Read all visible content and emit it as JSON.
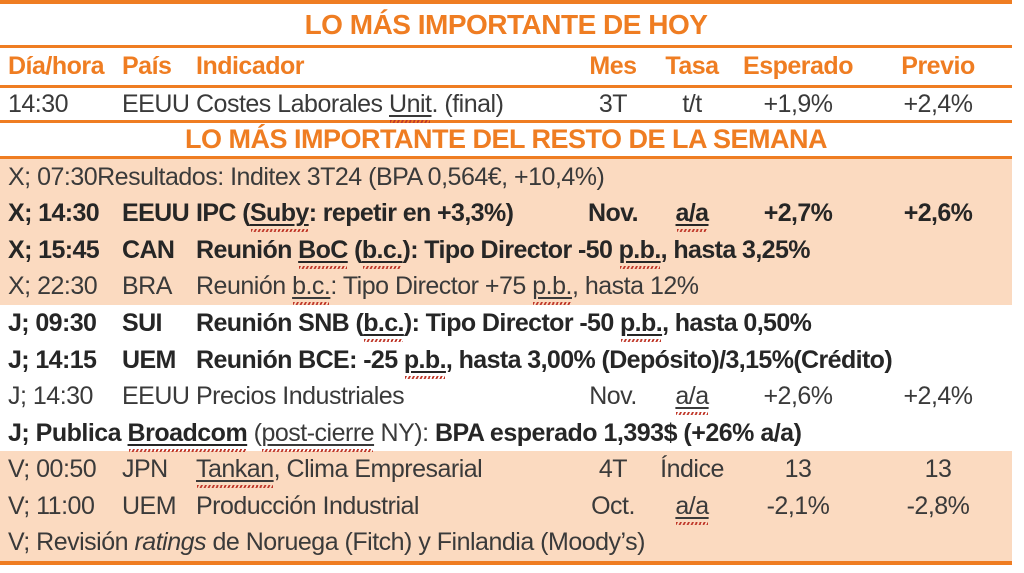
{
  "colors": {
    "accent_orange": "#EF7D22",
    "row_highlight_peach": "#FBDAC0",
    "spellcheck_red": "#C0392B",
    "text_dark": "#3A3A3A"
  },
  "today": {
    "title": "LO MÁS IMPORTANTE DE HOY",
    "headers": {
      "day": "Día/hora",
      "country": "País",
      "indicator": "Indicador",
      "mes": "Mes",
      "tasa": "Tasa",
      "esperado": "Esperado",
      "previo": "Previo"
    },
    "rows": [
      {
        "kind": "cols",
        "bold": false,
        "bg": "white",
        "day": "14:30",
        "country": "EEUU",
        "indicator": [
          {
            "t": "Costes Laborales "
          },
          {
            "t": "Unit",
            "usq": true
          },
          {
            "t": ". (final)"
          }
        ],
        "mes": "3T",
        "tasa": [
          {
            "t": "t/t"
          }
        ],
        "esperado": "+1,9%",
        "previo": "+2,4%"
      }
    ]
  },
  "week": {
    "title": "LO MÁS IMPORTANTE DEL RESTO DE LA SEMANA",
    "rows": [
      {
        "kind": "free",
        "bold": false,
        "bg": "peach",
        "segments": [
          {
            "t": "X; 07:30Resultados: Inditex 3T24 (BPA 0,564€, +10,4%)"
          }
        ]
      },
      {
        "kind": "cols",
        "bold": true,
        "bg": "peach",
        "day": "X; 14:30",
        "country": "EEUU",
        "indicator": [
          {
            "t": "IPC ("
          },
          {
            "t": "Suby",
            "usq": true
          },
          {
            "t": ": repetir en +3,3%)"
          }
        ],
        "mes": "Nov.",
        "tasa": [
          {
            "t": "a/a",
            "usq": true
          }
        ],
        "esperado": "+2,7%",
        "previo": "+2,6%"
      },
      {
        "kind": "daycols",
        "bold": true,
        "bg": "peach",
        "day": "X; 15:45",
        "country": "CAN",
        "segments": [
          {
            "t": "Reunión "
          },
          {
            "t": "BoC",
            "usq": true
          },
          {
            "t": " ("
          },
          {
            "t": "b.c.",
            "usq": true
          },
          {
            "t": "): Tipo Director -50 "
          },
          {
            "t": "p.b.",
            "usq": true
          },
          {
            "t": ", hasta 3,25%"
          }
        ]
      },
      {
        "kind": "daycols",
        "bold": false,
        "bg": "peach",
        "day": "X; 22:30",
        "country": "BRA",
        "segments": [
          {
            "t": "Reunión "
          },
          {
            "t": "b.c.",
            "usq": true
          },
          {
            "t": ":  Tipo Director +75 "
          },
          {
            "t": "p.b.",
            "usq": true
          },
          {
            "t": ", hasta 12%"
          }
        ]
      },
      {
        "kind": "daycols",
        "bold": true,
        "bg": "white",
        "day": "J; 09:30",
        "country": "SUI",
        "segments": [
          {
            "t": "Reunión SNB ("
          },
          {
            "t": "b.c.",
            "usq": true
          },
          {
            "t": "): Tipo Director -50 "
          },
          {
            "t": "p.b.",
            "usq": true
          },
          {
            "t": ", hasta 0,50%"
          }
        ]
      },
      {
        "kind": "daycols",
        "bold": true,
        "bg": "white",
        "day": "J; 14:15",
        "country": "UEM",
        "segments": [
          {
            "t": "Reunión BCE: -25 "
          },
          {
            "t": "p.b.",
            "usq": true
          },
          {
            "t": ", hasta 3,00% (Depósito)/3,15%(Crédito)"
          }
        ]
      },
      {
        "kind": "cols",
        "bold": false,
        "bg": "white",
        "day": "J; 14:30",
        "country": "EEUU",
        "indicator": [
          {
            "t": "Precios Industriales"
          }
        ],
        "mes": "Nov.",
        "tasa": [
          {
            "t": "a/a",
            "usq": true
          }
        ],
        "esperado": "+2,6%",
        "previo": "+2,4%"
      },
      {
        "kind": "free",
        "bold": false,
        "bg": "white",
        "segments": [
          {
            "t": "J; Publica ",
            "b": true
          },
          {
            "t": "Broadcom",
            "b": true,
            "usq": true
          },
          {
            "t": " ("
          },
          {
            "t": "post-cierre",
            "usq": true
          },
          {
            "t": " NY): "
          },
          {
            "t": "BPA esperado 1,393$ (+26% a/a)",
            "b": true
          }
        ]
      },
      {
        "kind": "cols",
        "bold": false,
        "bg": "peach",
        "day": "V; 00:50",
        "country": "JPN",
        "indicator": [
          {
            "t": "Tankan",
            "usq": true
          },
          {
            "t": ", Clima Empresarial"
          }
        ],
        "mes": "4T",
        "tasa": [
          {
            "t": "Índice"
          }
        ],
        "esperado": "13",
        "previo": "13"
      },
      {
        "kind": "cols",
        "bold": false,
        "bg": "peach",
        "day": "V; 11:00",
        "country": "UEM",
        "indicator": [
          {
            "t": "Producción Industrial"
          }
        ],
        "mes": "Oct.",
        "tasa": [
          {
            "t": "a/a",
            "usq": true
          }
        ],
        "esperado": "-2,1%",
        "previo": "-2,8%"
      },
      {
        "kind": "free",
        "bold": false,
        "bg": "peach",
        "segments": [
          {
            "t": "V; Revisión "
          },
          {
            "t": "ratings",
            "i": true
          },
          {
            "t": " de Noruega (Fitch) y Finlandia (Moody’s)"
          }
        ]
      }
    ]
  }
}
